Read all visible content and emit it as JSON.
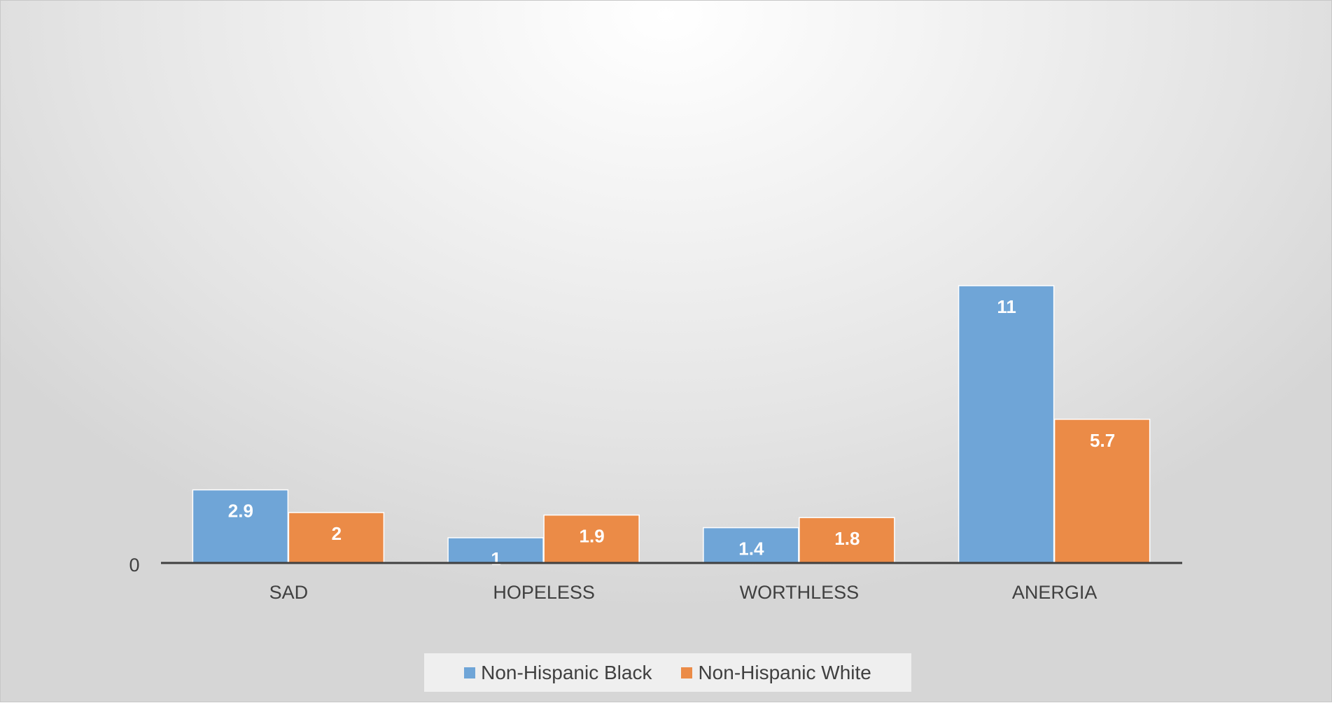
{
  "chart_data": {
    "type": "bar",
    "title": "",
    "xlabel": "",
    "ylabel": "",
    "categories": [
      "SAD",
      "HOPELESS",
      "WORTHLESS",
      "ANERGIA"
    ],
    "series": [
      {
        "name": "Non-Hispanic Black",
        "values": [
          2.9,
          1,
          1.4,
          11
        ],
        "color": "#6fa5d7"
      },
      {
        "name": "Non-Hispanic White",
        "values": [
          2,
          1.9,
          1.8,
          5.7
        ],
        "color": "#eb8b47"
      }
    ],
    "value_labels": {
      "Non-Hispanic Black": [
        "2.9",
        "1",
        "1.4",
        "11"
      ],
      "Non-Hispanic White": [
        "2",
        "1.9",
        "1.8",
        "5.7"
      ]
    },
    "ylim": [
      0,
      22.4
    ],
    "y_tick_labels": [
      "0"
    ],
    "grid": false,
    "legend_position": "bottom",
    "data_labels": true
  }
}
